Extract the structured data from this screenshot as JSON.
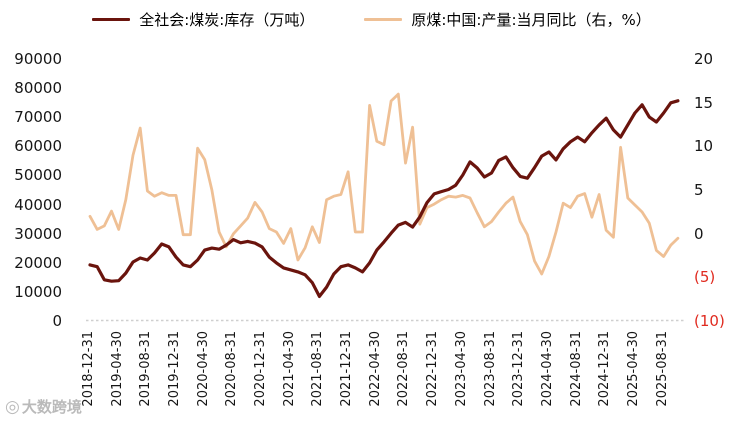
{
  "chart_data": {
    "type": "line",
    "title": "",
    "x_start": "2018-12",
    "x_end": "2025-10",
    "frequency": "monthly",
    "x_tick_labels": [
      "2018-12-31",
      "2019-04-30",
      "2019-08-31",
      "2019-12-31",
      "2020-04-30",
      "2020-08-31",
      "2020-12-31",
      "2021-04-30",
      "2021-08-31",
      "2021-12-31",
      "2022-04-30",
      "2022-08-31",
      "2022-12-31",
      "2023-04-30",
      "2023-08-31",
      "2023-12-31",
      "2024-04-30",
      "2024-08-31",
      "2024-12-31",
      "2025-04-30",
      "2025-08-31"
    ],
    "left_axis": {
      "min": 0,
      "max": 90000,
      "step": 10000,
      "ticks": [
        "90000",
        "80000",
        "70000",
        "60000",
        "50000",
        "40000",
        "30000",
        "20000",
        "10000",
        "0"
      ],
      "color": "#161616"
    },
    "right_axis": {
      "min": -10,
      "max": 20,
      "step": 5,
      "ticks": [
        "20",
        "15",
        "10",
        "5",
        "0",
        "(5)",
        "(10)"
      ],
      "negative_color": "#e02b20",
      "color": "#161616"
    },
    "grid": "baseline-only",
    "legend_position": "top-center",
    "series": [
      {
        "name": "全社会:煤炭:库存（万吨）",
        "axis": "left",
        "color": "#6a140d",
        "values": [
          19600,
          19000,
          14500,
          14000,
          14200,
          16800,
          20600,
          22000,
          21300,
          23700,
          26800,
          25800,
          22300,
          19600,
          19000,
          21300,
          24700,
          25400,
          25000,
          26400,
          28300,
          27200,
          27700,
          27100,
          25800,
          22300,
          20300,
          18600,
          17900,
          17200,
          16200,
          13500,
          8800,
          12000,
          16500,
          19000,
          19600,
          18600,
          17200,
          20300,
          24700,
          27500,
          30500,
          33300,
          34200,
          32600,
          36100,
          41000,
          44000,
          44800,
          45500,
          47000,
          50500,
          55000,
          52900,
          49800,
          51200,
          55500,
          56700,
          53000,
          50000,
          49400,
          53000,
          57000,
          58400,
          55700,
          59500,
          61900,
          63500,
          61900,
          65000,
          67700,
          70000,
          66000,
          63500,
          67700,
          71800,
          74600,
          70400,
          68700,
          71800,
          75300,
          76000
        ]
      },
      {
        "name": "原煤:中国:产量:当月同比（右，%）",
        "axis": "right",
        "color": "#efc095",
        "values": [
          2.1,
          0.6,
          1.0,
          2.7,
          0.6,
          4.0,
          9.1,
          12.2,
          5.0,
          4.4,
          4.8,
          4.5,
          4.5,
          0.0,
          0.0,
          9.9,
          8.6,
          5.1,
          0.3,
          -1.4,
          0.1,
          1.0,
          1.9,
          3.7,
          2.6,
          0.7,
          0.3,
          -1.0,
          0.7,
          -2.9,
          -1.5,
          0.9,
          -0.9,
          4.0,
          4.4,
          4.6,
          7.2,
          0.3,
          0.3,
          14.8,
          10.7,
          10.3,
          15.3,
          16.1,
          8.2,
          12.3,
          1.2,
          3.1,
          3.5,
          4.0,
          4.4,
          4.3,
          4.5,
          4.2,
          2.5,
          0.9,
          1.5,
          2.6,
          3.6,
          4.3,
          1.5,
          0.0,
          -3.0,
          -4.5,
          -2.5,
          0.3,
          3.6,
          3.1,
          4.4,
          4.7,
          2.0,
          4.6,
          0.5,
          -0.3,
          10.0,
          4.2,
          3.4,
          2.6,
          1.3,
          -1.8,
          -2.5,
          -1.2,
          -0.4
        ]
      }
    ]
  },
  "watermark": {
    "logo": "◎",
    "text": "大数跨境"
  }
}
